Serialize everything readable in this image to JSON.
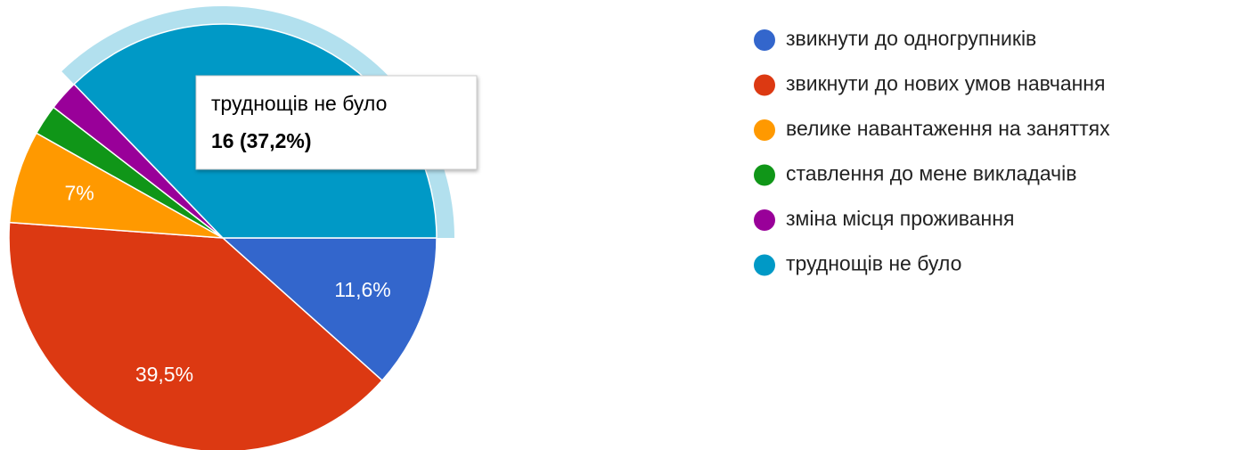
{
  "chart_data": {
    "type": "pie",
    "categories": [
      "звикнути до одногрупників",
      "звикнути до нових умов навчання",
      "велике навантаження на заняттях",
      "ставлення до мене викладачів",
      "зміна місця проживання",
      "труднощів не було"
    ],
    "values": [
      11.6,
      39.5,
      7,
      2.3,
      2.3,
      37.2
    ],
    "value_labels": [
      "11,6%",
      "39,5%",
      "7%",
      null,
      null,
      null
    ],
    "colors": [
      "#3366cc",
      "#dc3912",
      "#ff9900",
      "#109618",
      "#990099",
      "#0099c6"
    ],
    "highlight": 5,
    "tooltip": {
      "title": "труднощів не було",
      "text": "16 (37,2%)"
    },
    "legend": "right"
  }
}
